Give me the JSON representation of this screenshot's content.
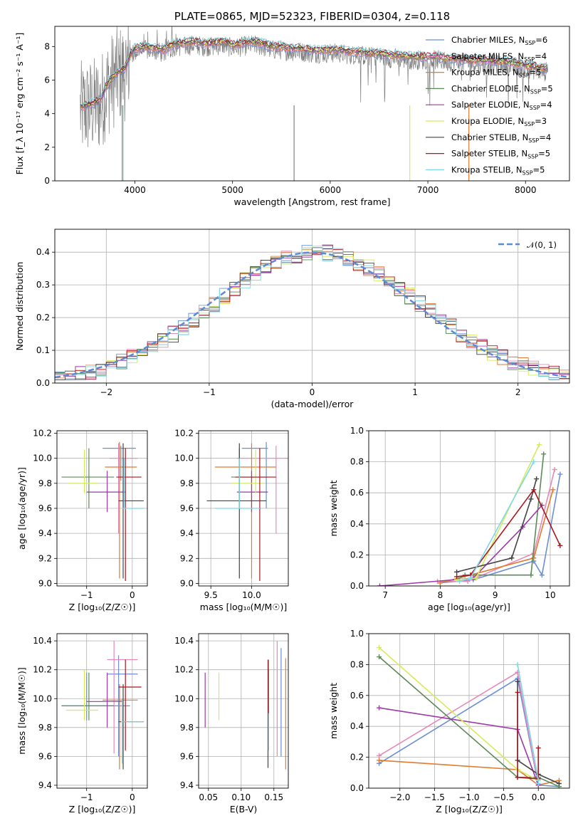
{
  "chart_data": [
    {
      "type": "line",
      "title": "PLATE=0865, MJD=52323, FIBERID=0304, z=0.118",
      "xlabel": "wavelength [Angstrom, rest frame]",
      "ylabel": "Flux [f_λ 10⁻¹⁷ erg cm⁻² s⁻¹ A⁻¹]",
      "xlim": [
        3180,
        8450
      ],
      "ylim": [
        0,
        9.2
      ],
      "xticks": [
        "4000",
        "5000",
        "6000",
        "7000",
        "8000"
      ],
      "yticks": [
        "0",
        "2",
        "4",
        "6",
        "8"
      ],
      "grid": false,
      "legend_position": "top-right",
      "series": [
        {
          "name": "Chabrier MILES, N_SSP=6",
          "color": "#6a8fd4"
        },
        {
          "name": "Salpeter MILES, N_SSP=4",
          "color": "#e58ab8"
        },
        {
          "name": "Kroupa MILES, N_SSP=5",
          "color": "#e07b30"
        },
        {
          "name": "Chabrier ELODIE, N_SSP=5",
          "color": "#5d8a5a"
        },
        {
          "name": "Salpeter ELODIE, N_SSP=4",
          "color": "#9b3aa8"
        },
        {
          "name": "Kroupa ELODIE, N_SSP=3",
          "color": "#d4ec5a"
        },
        {
          "name": "Chabrier STELIB, N_SSP=4",
          "color": "#444444"
        },
        {
          "name": "Salpeter STELIB, N_SSP=5",
          "color": "#a81820"
        },
        {
          "name": "Kroupa STELIB, N_SSP=5",
          "color": "#7fd8e8"
        }
      ],
      "data_color": "#808080",
      "continuum": {
        "x": [
          3450,
          3550,
          3650,
          3700,
          3800,
          3900,
          3950,
          4000,
          4100,
          4200,
          4300,
          4400,
          4500,
          4600,
          4700,
          4800,
          4900,
          5000,
          5100,
          5200,
          5300,
          5400,
          5500,
          5600,
          5700,
          5800,
          5900,
          6000,
          6100,
          6200,
          6300,
          6400,
          6500,
          6600,
          6700,
          6800,
          6900,
          7000,
          7100,
          7200,
          7300,
          7400,
          7500,
          7600,
          7700,
          7800,
          7900,
          8000,
          8100,
          8200
        ],
        "y": [
          4.2,
          4.4,
          4.6,
          5.4,
          6.2,
          6.5,
          7.3,
          7.7,
          7.8,
          7.7,
          7.6,
          8.0,
          8.0,
          8.1,
          8.0,
          8.0,
          8.1,
          7.9,
          8.0,
          8.1,
          8.0,
          7.8,
          7.8,
          7.7,
          7.7,
          7.6,
          7.6,
          7.6,
          7.6,
          7.5,
          7.5,
          7.4,
          7.4,
          7.3,
          7.3,
          7.2,
          7.2,
          7.2,
          7.2,
          7.1,
          7.1,
          7.0,
          7.0,
          7.0,
          6.9,
          6.9,
          6.8,
          6.7,
          6.6,
          6.5
        ]
      }
    },
    {
      "type": "line",
      "title": "",
      "xlabel": "(data-model)/error",
      "ylabel": "Normed distribution",
      "xlim": [
        -2.5,
        2.5
      ],
      "ylim": [
        0,
        0.47
      ],
      "xticks": [
        "−2",
        "−1",
        "0",
        "1",
        "2"
      ],
      "yticks": [
        "0.0",
        "0.1",
        "0.2",
        "0.3",
        "0.4"
      ],
      "grid": true,
      "legend_position": "top-right",
      "legend": "𝒩(0, 1)",
      "normal_color": "#5b8bd6",
      "step_type": "histogram"
    },
    {
      "type": "scatter",
      "xlabel": "Z [log₁₀(Z/Z☉)]",
      "ylabel": "age  [log₁₀(age/yr)]",
      "xlim": [
        -1.65,
        0.33
      ],
      "ylim": [
        8.98,
        10.22
      ],
      "xticks": [
        "−1",
        "0"
      ],
      "yticks": [
        "9.0",
        "9.2",
        "9.4",
        "9.6",
        "9.8",
        "10.0",
        "10.2"
      ],
      "crosses": [
        {
          "x": [
            -0.65,
            0.08
          ],
          "y": [
            10.08,
            10.08
          ],
          "vx": -0.25,
          "vy": [
            9.82,
            10.1
          ],
          "c": "#6a8fd4"
        },
        {
          "x": [
            -0.5,
            0.12
          ],
          "y": [
            10.0,
            10.0
          ],
          "vx": -0.3,
          "vy": [
            9.4,
            10.12
          ],
          "c": "#e58ab8"
        },
        {
          "x": [
            -0.6,
            0.1
          ],
          "y": [
            9.93,
            9.93
          ],
          "vx": -0.28,
          "vy": [
            9.04,
            10.13
          ],
          "c": "#e07b30"
        },
        {
          "x": [
            -1.55,
            -0.4
          ],
          "y": [
            9.85,
            9.85
          ],
          "vx": -0.95,
          "vy": [
            9.6,
            10.08
          ],
          "c": "#5d8a5a"
        },
        {
          "x": [
            -1.0,
            -0.15
          ],
          "y": [
            9.73,
            9.73
          ],
          "vx": -0.55,
          "vy": [
            9.57,
            9.9
          ],
          "c": "#9b3aa8"
        },
        {
          "x": [
            -1.4,
            -0.75
          ],
          "y": [
            9.8,
            9.8
          ],
          "vx": -1.05,
          "vy": [
            9.72,
            10.07
          ],
          "c": "#d4ec5a"
        },
        {
          "x": [
            -0.3,
            0.25
          ],
          "y": [
            9.66,
            9.66
          ],
          "vx": -0.2,
          "vy": [
            9.04,
            10.12
          ],
          "c": "#444444"
        },
        {
          "x": [
            -0.35,
            0.2
          ],
          "y": [
            9.85,
            9.85
          ],
          "vx": -0.15,
          "vy": [
            9.02,
            10.08
          ],
          "c": "#a81820"
        },
        {
          "x": [
            -0.22,
            0.25
          ],
          "y": [
            9.6,
            9.6
          ],
          "vx": -0.18,
          "vy": [
            9.6,
            10.0
          ],
          "c": "#7fd8e8"
        }
      ]
    },
    {
      "type": "scatter",
      "xlabel": "mass [log₁₀(M/M☉)]",
      "ylabel": "",
      "xlim": [
        9.35,
        10.45
      ],
      "ylim": [
        8.98,
        10.22
      ],
      "xticks": [
        "9.5",
        "10.0"
      ],
      "yticks": [
        "9.0",
        "9.2",
        "9.4",
        "9.6",
        "9.8",
        "10.0",
        "10.2"
      ],
      "crosses": [
        {
          "x": [
            9.88,
            10.2
          ],
          "y": [
            10.08,
            10.08
          ],
          "vx": 10.18,
          "vy": [
            9.6,
            10.13
          ],
          "c": "#6a8fd4"
        },
        {
          "x": [
            9.82,
            10.45
          ],
          "y": [
            10.0,
            10.0
          ],
          "vx": 10.3,
          "vy": [
            9.4,
            10.1
          ],
          "c": "#e58ab8"
        },
        {
          "x": [
            9.55,
            10.3
          ],
          "y": [
            9.93,
            9.93
          ],
          "vx": 10.0,
          "vy": [
            9.04,
            10.12
          ],
          "c": "#e07b30"
        },
        {
          "x": [
            9.75,
            10.2
          ],
          "y": [
            9.85,
            9.85
          ],
          "vx": 9.85,
          "vy": [
            9.6,
            10.08
          ],
          "c": "#5d8a5a"
        },
        {
          "x": [
            9.82,
            10.2
          ],
          "y": [
            9.73,
            9.73
          ],
          "vx": 10.0,
          "vy": [
            9.57,
            9.9
          ],
          "c": "#9b3aa8"
        },
        {
          "x": [
            9.75,
            10.15
          ],
          "y": [
            9.8,
            9.8
          ],
          "vx": 10.05,
          "vy": [
            9.72,
            10.07
          ],
          "c": "#d4ec5a"
        },
        {
          "x": [
            9.45,
            10.18
          ],
          "y": [
            9.66,
            9.66
          ],
          "vx": 9.85,
          "vy": [
            9.04,
            10.12
          ],
          "c": "#444444"
        },
        {
          "x": [
            9.8,
            10.3
          ],
          "y": [
            9.85,
            9.85
          ],
          "vx": 10.1,
          "vy": [
            9.02,
            10.08
          ],
          "c": "#a81820"
        },
        {
          "x": [
            9.55,
            10.1
          ],
          "y": [
            9.6,
            9.6
          ],
          "vx": 9.85,
          "vy": [
            9.6,
            10.0
          ],
          "c": "#7fd8e8"
        }
      ]
    },
    {
      "type": "line",
      "xlabel": "age  [log₁₀(age/yr)]",
      "ylabel": "mass weight",
      "xlim": [
        6.7,
        10.35
      ],
      "ylim": [
        0,
        1.0
      ],
      "xticks": [
        "7",
        "8",
        "9",
        "10"
      ],
      "yticks": [
        "0.0",
        "0.2",
        "0.4",
        "0.6",
        "0.8",
        "1.0"
      ],
      "grid": true,
      "series": [
        {
          "c": "#6a8fd4",
          "x": [
            8.0,
            8.6,
            9.7,
            9.85,
            10.18
          ],
          "y": [
            0.02,
            0.04,
            0.16,
            0.07,
            0.72
          ]
        },
        {
          "c": "#e58ab8",
          "x": [
            7.95,
            8.5,
            9.7,
            10.08
          ],
          "y": [
            0.03,
            0.03,
            0.21,
            0.75
          ]
        },
        {
          "c": "#e07b30",
          "x": [
            8.0,
            8.55,
            9.7,
            10.05
          ],
          "y": [
            0.02,
            0.07,
            0.18,
            0.62
          ]
        },
        {
          "c": "#5d8a5a",
          "x": [
            8.3,
            8.45,
            9.65,
            9.88
          ],
          "y": [
            0.04,
            0.07,
            0.07,
            0.85
          ]
        },
        {
          "c": "#9b3aa8",
          "x": [
            6.9,
            8.6,
            9.5,
            9.85
          ],
          "y": [
            0.0,
            0.05,
            0.38,
            0.52
          ]
        },
        {
          "c": "#d4ec5a",
          "x": [
            8.3,
            8.65,
            9.8
          ],
          "y": [
            0.04,
            0.05,
            0.91
          ]
        },
        {
          "c": "#444444",
          "x": [
            8.3,
            9.3,
            9.65,
            9.75
          ],
          "y": [
            0.09,
            0.18,
            0.56,
            0.69
          ]
        },
        {
          "c": "#a81820",
          "x": [
            8.3,
            8.55,
            9.7,
            10.18
          ],
          "y": [
            0.06,
            0.07,
            0.62,
            0.26
          ]
        },
        {
          "c": "#7fd8e8",
          "x": [
            8.35,
            8.55,
            9.7
          ],
          "y": [
            0.03,
            0.05,
            0.8
          ]
        }
      ]
    },
    {
      "type": "scatter",
      "xlabel": "Z [log₁₀(Z/Z☉)]",
      "ylabel": "mass [log₁₀(M/M☉)]",
      "xlim": [
        -1.65,
        0.33
      ],
      "ylim": [
        9.38,
        10.45
      ],
      "xticks": [
        "−1",
        "0"
      ],
      "yticks": [
        "9.4",
        "9.6",
        "9.8",
        "10.0",
        "10.2",
        "10.4"
      ],
      "crosses": [
        {
          "x": [
            -1.55,
            -0.05
          ],
          "y": [
            9.95,
            9.95
          ],
          "vx": -1.0,
          "vy": [
            9.85,
            10.18
          ],
          "c": "#6a8fd4"
        },
        {
          "x": [
            -0.55,
            0.12
          ],
          "y": [
            10.17,
            10.17
          ],
          "vx": -0.3,
          "vy": [
            9.6,
            10.3
          ],
          "c": "#6a8fd4"
        },
        {
          "x": [
            -0.55,
            0.12
          ],
          "y": [
            10.27,
            10.27
          ],
          "vx": -0.4,
          "vy": [
            9.62,
            10.4
          ],
          "c": "#e58ab8"
        },
        {
          "x": [
            -0.65,
            0.12
          ],
          "y": [
            9.99,
            9.99
          ],
          "vx": -0.28,
          "vy": [
            9.51,
            10.1
          ],
          "c": "#e07b30"
        },
        {
          "x": [
            -1.55,
            -0.4
          ],
          "y": [
            9.95,
            9.95
          ],
          "vx": -0.95,
          "vy": [
            9.85,
            10.18
          ],
          "c": "#5d8a5a"
        },
        {
          "x": [
            -1.0,
            -0.2
          ],
          "y": [
            9.98,
            9.98
          ],
          "vx": -0.55,
          "vy": [
            9.8,
            10.18
          ],
          "c": "#9b3aa8"
        },
        {
          "x": [
            -1.45,
            -0.75
          ],
          "y": [
            9.92,
            9.92
          ],
          "vx": -1.05,
          "vy": [
            9.85,
            10.2
          ],
          "c": "#d4ec5a"
        },
        {
          "x": [
            -0.3,
            0.25
          ],
          "y": [
            9.84,
            9.84
          ],
          "vx": -0.2,
          "vy": [
            9.51,
            10.1
          ],
          "c": "#444444"
        },
        {
          "x": [
            -0.3,
            0.2
          ],
          "y": [
            10.08,
            10.08
          ],
          "vx": -0.15,
          "vy": [
            9.64,
            10.27
          ],
          "c": "#a81820"
        },
        {
          "x": [
            -0.25,
            0.25
          ],
          "y": [
            9.84,
            9.84
          ],
          "vx": -0.22,
          "vy": [
            9.55,
            10.0
          ],
          "c": "#7fd8e8"
        }
      ]
    },
    {
      "type": "scatter",
      "xlabel": "E(B-V)",
      "ylabel": "",
      "xlim": [
        0.035,
        0.172
      ],
      "ylim": [
        9.38,
        10.45
      ],
      "xticks": [
        "0.05",
        "0.10",
        "0.15"
      ],
      "yticks": [
        "9.4",
        "9.6",
        "9.8",
        "10.0",
        "10.2",
        "10.4"
      ],
      "bars": [
        {
          "x": 0.045,
          "vy": [
            9.8,
            10.18
          ],
          "c": "#9b3aa8"
        },
        {
          "x": 0.066,
          "vy": [
            9.85,
            10.18
          ],
          "c": "#d4ec5a"
        },
        {
          "x": 0.141,
          "vy": [
            9.52,
            10.27
          ],
          "c": "#444444"
        },
        {
          "x": 0.142,
          "vy": [
            9.64,
            10.2
          ],
          "c": "#7fd8e8"
        },
        {
          "x": 0.1415,
          "vy": [
            9.9,
            10.27
          ],
          "c": "#a81820"
        },
        {
          "x": 0.155,
          "vy": [
            9.6,
            10.4
          ],
          "c": "#e58ab8"
        },
        {
          "x": 0.161,
          "vy": [
            9.6,
            10.35
          ],
          "c": "#6a8fd4"
        },
        {
          "x": 0.168,
          "vy": [
            9.51,
            10.28
          ],
          "c": "#e07b30"
        }
      ]
    },
    {
      "type": "line",
      "xlabel": "Z [log₁₀(Z/Z☉)]",
      "ylabel": "mass weight",
      "xlim": [
        -2.45,
        0.45
      ],
      "ylim": [
        0,
        1.0
      ],
      "xticks": [
        "−2.0",
        "−1.5",
        "−1.0",
        "−0.5",
        "0.0"
      ],
      "yticks": [
        "0.0",
        "0.2",
        "0.4",
        "0.6",
        "0.8",
        "1.0"
      ],
      "grid": true,
      "series": [
        {
          "c": "#6a8fd4",
          "x": [
            -2.3,
            -0.3,
            0.0,
            0.3
          ],
          "y": [
            0.16,
            0.71,
            0.02,
            0.01
          ]
        },
        {
          "c": "#e58ab8",
          "x": [
            -2.3,
            -0.3,
            0.0
          ],
          "y": [
            0.21,
            0.75,
            0.02
          ]
        },
        {
          "c": "#e07b30",
          "x": [
            -2.3,
            -0.3,
            0.0,
            0.3
          ],
          "y": [
            0.18,
            0.12,
            0.02,
            0.05
          ]
        },
        {
          "c": "#5d8a5a",
          "x": [
            -2.3,
            -0.3,
            0.0,
            0.3
          ],
          "y": [
            0.85,
            0.07,
            0.07,
            0.01
          ]
        },
        {
          "c": "#9b3aa8",
          "x": [
            -2.3,
            -0.3,
            0.0
          ],
          "y": [
            0.52,
            0.38,
            0.02
          ]
        },
        {
          "c": "#d4ec5a",
          "x": [
            -2.3,
            -0.3,
            0.0
          ],
          "y": [
            0.91,
            0.12,
            0.05
          ]
        },
        {
          "c": "#444444",
          "x": [
            -0.3,
            -0.3,
            0.0,
            0.3
          ],
          "y": [
            0.69,
            0.18,
            0.09,
            0.03
          ]
        },
        {
          "c": "#a81820",
          "x": [
            -0.3,
            -0.3,
            0.0,
            0.0
          ],
          "y": [
            0.62,
            0.07,
            0.06,
            0.26
          ]
        },
        {
          "c": "#7fd8e8",
          "x": [
            -0.3,
            0.0,
            0.0
          ],
          "y": [
            0.8,
            0.05,
            0.03
          ]
        }
      ]
    }
  ]
}
